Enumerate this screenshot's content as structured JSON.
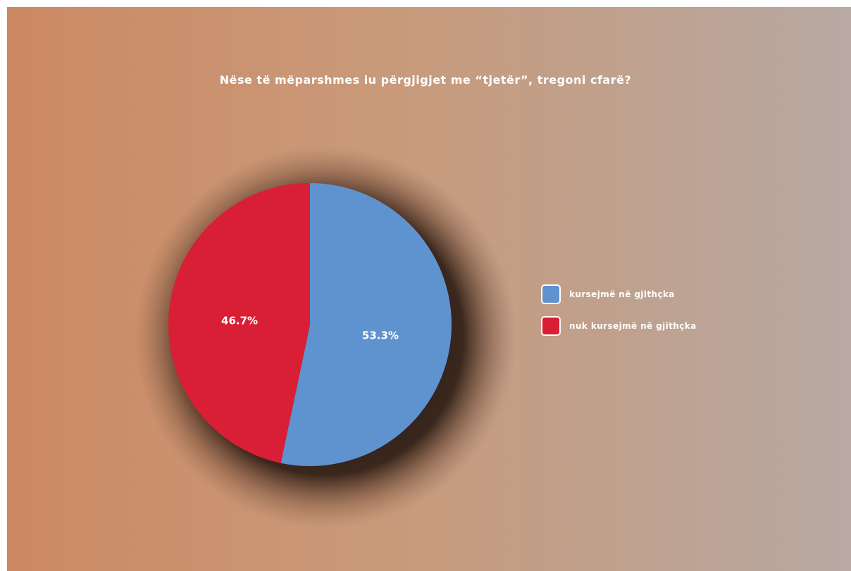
{
  "chart_data": {
    "type": "pie",
    "title": "Nëse të mëparshmes iu përgjigjet me “tjetër”, tregoni cfarë?",
    "slices": [
      {
        "name": "kursejmë në gjithçka",
        "value": 53.3,
        "label": "53.3%",
        "color": "#5f93cf"
      },
      {
        "name": "nuk kursejmë në gjithçka",
        "value": 46.7,
        "label": "46.7%",
        "color": "#d91f36"
      }
    ],
    "legend_position": "right"
  }
}
